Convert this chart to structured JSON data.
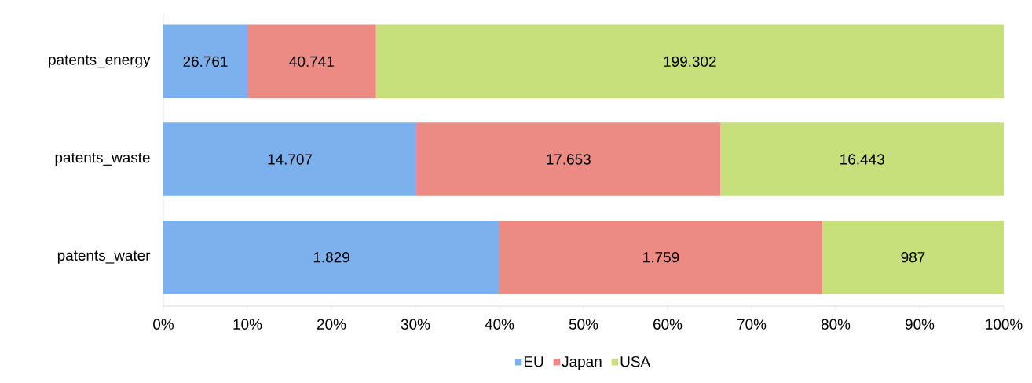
{
  "chart_data": {
    "type": "bar",
    "orientation": "horizontal",
    "stacked": true,
    "categories": [
      "patents_energy",
      "patents_waste",
      "patents_water"
    ],
    "series": [
      {
        "name": "EU",
        "color": "#7db1ee",
        "values": [
          10.0,
          30.1,
          40.0
        ]
      },
      {
        "name": "Japan",
        "color": "#ec8a84",
        "values": [
          15.3,
          36.2,
          38.4
        ]
      },
      {
        "name": "USA",
        "color": "#c8e07c",
        "values": [
          74.7,
          33.7,
          21.6
        ]
      }
    ],
    "annotations": [
      "26.761",
      "14.707",
      "1.829",
      "40.741",
      "17.653",
      "1.759",
      "199.302",
      "16.443",
      "987"
    ],
    "xlim": [
      0,
      100
    ],
    "xticks": [
      {
        "value": 0,
        "label": "0%"
      },
      {
        "value": 10,
        "label": "10%"
      },
      {
        "value": 20,
        "label": "20%"
      },
      {
        "value": 30,
        "label": "30%"
      },
      {
        "value": 40,
        "label": "40%"
      },
      {
        "value": 50,
        "label": "50%"
      },
      {
        "value": 60,
        "label": "60%"
      },
      {
        "value": 70,
        "label": "70%"
      },
      {
        "value": 80,
        "label": "80%"
      },
      {
        "value": 90,
        "label": "90%"
      },
      {
        "value": 100,
        "label": "100%"
      }
    ],
    "grid": false,
    "legend": "bottom"
  }
}
